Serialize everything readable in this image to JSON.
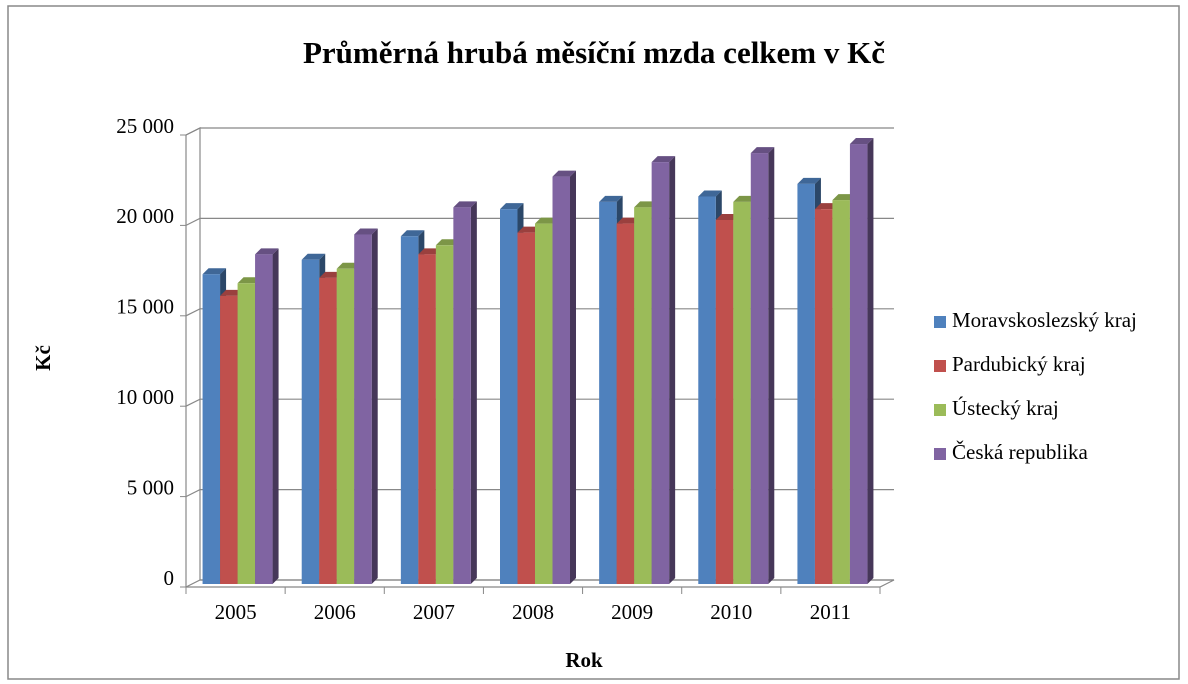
{
  "chart_data": {
    "type": "bar3d",
    "title": "Průměrná hrubá měsíční mzda celkem v Kč",
    "xlabel": "Rok",
    "ylabel": "Kč",
    "categories": [
      "2005",
      "2006",
      "2007",
      "2008",
      "2009",
      "2010",
      "2011"
    ],
    "series": [
      {
        "name": "Moravskoslezský kraj",
        "color": "#4f81bd",
        "values": [
          17300,
          18100,
          19400,
          20900,
          21300,
          21600,
          22300
        ]
      },
      {
        "name": "Pardubický kraj",
        "color": "#c0504d",
        "values": [
          16100,
          17100,
          18400,
          19600,
          20100,
          20300,
          20900
        ]
      },
      {
        "name": "Ústecký kraj",
        "color": "#9bbb59",
        "values": [
          16800,
          17600,
          18900,
          20100,
          21000,
          21300,
          21400
        ]
      },
      {
        "name": "Česká republika",
        "color": "#8064a2",
        "values": [
          18400,
          19500,
          21000,
          22700,
          23500,
          24000,
          24500
        ]
      }
    ],
    "ylim": [
      0,
      25000
    ],
    "yticks": [
      0,
      {
        "value": 5000,
        "label": "5 000"
      },
      {
        "value": 10000,
        "label": "10 000"
      },
      {
        "value": 15000,
        "label": "15 000"
      },
      {
        "value": 20000,
        "label": "20 000"
      },
      {
        "value": 25000,
        "label": "25 000"
      }
    ],
    "grid": true,
    "legend": "right"
  }
}
